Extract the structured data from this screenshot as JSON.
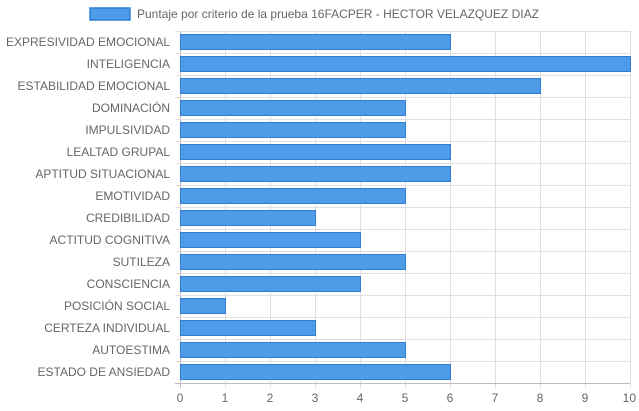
{
  "chart_data": {
    "type": "bar",
    "orientation": "horizontal",
    "categories": [
      "EXPRESIVIDAD EMOCIONAL",
      "INTELIGENCIA",
      "ESTABILIDAD EMOCIONAL",
      "DOMINACIÓN",
      "IMPULSIVIDAD",
      "LEALTAD GRUPAL",
      "APTITUD SITUACIONAL",
      "EMOTIVIDAD",
      "CREDIBILIDAD",
      "ACTITUD COGNITIVA",
      "SUTILEZA",
      "CONSCIENCIA",
      "POSICIÓN SOCIAL",
      "CERTEZA INDIVIDUAL",
      "AUTOESTIMA",
      "ESTADO DE ANSIEDAD"
    ],
    "series": [
      {
        "name": "Puntaje por criterio de la prueba 16FACPER - HECTOR VELAZQUEZ DIAZ",
        "values": [
          6,
          10,
          8,
          5,
          5,
          6,
          6,
          5,
          3,
          4,
          5,
          4,
          1,
          3,
          5,
          6
        ]
      }
    ],
    "xlim": [
      0,
      10
    ],
    "x_ticks": [
      "0",
      "1",
      "2",
      "3",
      "4",
      "5",
      "6",
      "7",
      "8",
      "9",
      "10"
    ],
    "grid": true,
    "legend_position": "top",
    "colors": {
      "bar_fill": "#4f9be8",
      "bar_stroke": "#2f7fd8",
      "grid": "#e0e0e0",
      "axis": "#bdbdbd",
      "text": "#666666"
    }
  }
}
